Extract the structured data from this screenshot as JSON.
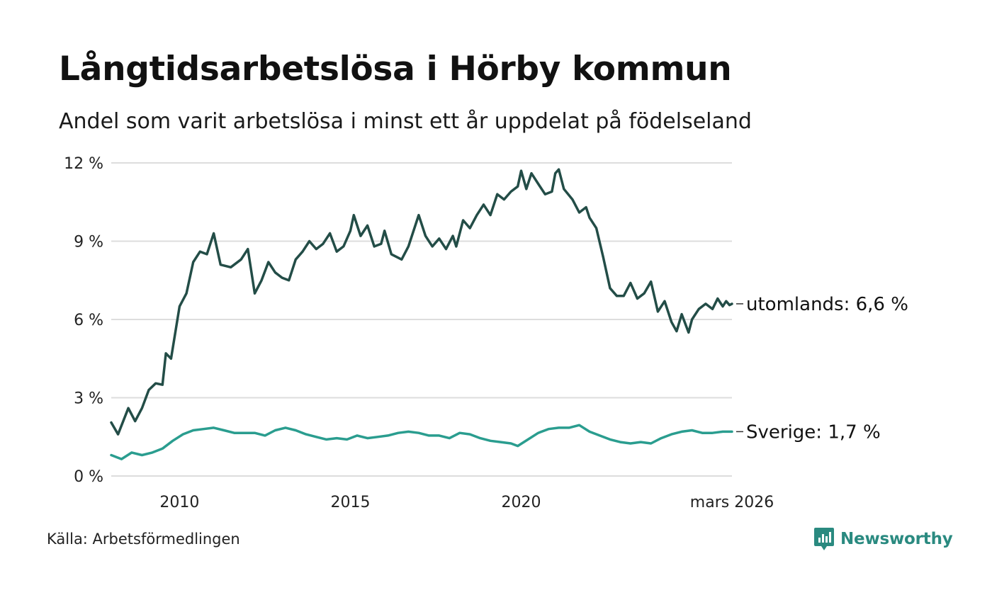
{
  "title": "Långtidsarbetslösa i Hörby kommun",
  "subtitle": "Andel som varit arbetslösa i minst ett år uppdelat på födelseland",
  "source": "Källa: Arbetsförmedlingen",
  "brand": "Newsworthy",
  "colors": {
    "utomlands": "#234d47",
    "sverige": "#2a9d8f",
    "grid": "#dddddd",
    "brand": "#2a8a80"
  },
  "chart_data": {
    "type": "line",
    "title": "Långtidsarbetslösa i Hörby kommun",
    "ylabel": "",
    "ylim": [
      0,
      12
    ],
    "yticks": [
      0,
      3,
      6,
      9,
      12
    ],
    "ytick_labels": [
      "0 %",
      "3 %",
      "6 %",
      "9 %",
      "12 %"
    ],
    "xlim": [
      2008.0,
      2026.17
    ],
    "xticks": [
      2010,
      2015,
      2020,
      2026.17
    ],
    "xtick_labels": [
      "2010",
      "2015",
      "2020",
      "mars 2026"
    ],
    "series": [
      {
        "name": "utomlands",
        "end_label": "utomlands: 6,6 %",
        "points": [
          [
            2008.0,
            2.05
          ],
          [
            2008.2,
            1.6
          ],
          [
            2008.5,
            2.6
          ],
          [
            2008.7,
            2.1
          ],
          [
            2008.9,
            2.6
          ],
          [
            2009.1,
            3.3
          ],
          [
            2009.3,
            3.55
          ],
          [
            2009.5,
            3.5
          ],
          [
            2009.6,
            4.7
          ],
          [
            2009.75,
            4.5
          ],
          [
            2010.0,
            6.5
          ],
          [
            2010.2,
            7.0
          ],
          [
            2010.4,
            8.2
          ],
          [
            2010.6,
            8.6
          ],
          [
            2010.8,
            8.5
          ],
          [
            2011.0,
            9.3
          ],
          [
            2011.2,
            8.1
          ],
          [
            2011.5,
            8.0
          ],
          [
            2011.8,
            8.3
          ],
          [
            2012.0,
            8.7
          ],
          [
            2012.2,
            7.0
          ],
          [
            2012.4,
            7.5
          ],
          [
            2012.6,
            8.2
          ],
          [
            2012.8,
            7.8
          ],
          [
            2013.0,
            7.6
          ],
          [
            2013.2,
            7.5
          ],
          [
            2013.4,
            8.3
          ],
          [
            2013.6,
            8.6
          ],
          [
            2013.8,
            9.0
          ],
          [
            2014.0,
            8.7
          ],
          [
            2014.2,
            8.9
          ],
          [
            2014.4,
            9.3
          ],
          [
            2014.6,
            8.6
          ],
          [
            2014.8,
            8.8
          ],
          [
            2015.0,
            9.4
          ],
          [
            2015.1,
            10.0
          ],
          [
            2015.3,
            9.2
          ],
          [
            2015.5,
            9.6
          ],
          [
            2015.7,
            8.8
          ],
          [
            2015.9,
            8.9
          ],
          [
            2016.0,
            9.4
          ],
          [
            2016.2,
            8.5
          ],
          [
            2016.5,
            8.3
          ],
          [
            2016.7,
            8.8
          ],
          [
            2017.0,
            10.0
          ],
          [
            2017.2,
            9.2
          ],
          [
            2017.4,
            8.8
          ],
          [
            2017.6,
            9.1
          ],
          [
            2017.8,
            8.7
          ],
          [
            2018.0,
            9.2
          ],
          [
            2018.1,
            8.8
          ],
          [
            2018.3,
            9.8
          ],
          [
            2018.5,
            9.5
          ],
          [
            2018.7,
            10.0
          ],
          [
            2018.9,
            10.4
          ],
          [
            2019.1,
            10.0
          ],
          [
            2019.3,
            10.8
          ],
          [
            2019.5,
            10.6
          ],
          [
            2019.7,
            10.9
          ],
          [
            2019.9,
            11.1
          ],
          [
            2020.0,
            11.7
          ],
          [
            2020.15,
            11.0
          ],
          [
            2020.3,
            11.6
          ],
          [
            2020.5,
            11.2
          ],
          [
            2020.7,
            10.8
          ],
          [
            2020.9,
            10.9
          ],
          [
            2021.0,
            11.6
          ],
          [
            2021.1,
            11.75
          ],
          [
            2021.25,
            11.0
          ],
          [
            2021.5,
            10.6
          ],
          [
            2021.7,
            10.1
          ],
          [
            2021.9,
            10.3
          ],
          [
            2022.0,
            9.9
          ],
          [
            2022.2,
            9.5
          ],
          [
            2022.4,
            8.4
          ],
          [
            2022.6,
            7.2
          ],
          [
            2022.8,
            6.9
          ],
          [
            2023.0,
            6.9
          ],
          [
            2023.2,
            7.4
          ],
          [
            2023.4,
            6.8
          ],
          [
            2023.6,
            7.0
          ],
          [
            2023.8,
            7.45
          ],
          [
            2024.0,
            6.3
          ],
          [
            2024.2,
            6.7
          ],
          [
            2024.4,
            5.9
          ],
          [
            2024.55,
            5.55
          ],
          [
            2024.7,
            6.2
          ],
          [
            2024.9,
            5.5
          ],
          [
            2025.0,
            6.0
          ],
          [
            2025.2,
            6.4
          ],
          [
            2025.4,
            6.6
          ],
          [
            2025.6,
            6.4
          ],
          [
            2025.75,
            6.8
          ],
          [
            2025.9,
            6.5
          ],
          [
            2026.0,
            6.7
          ],
          [
            2026.1,
            6.55
          ],
          [
            2026.17,
            6.6
          ]
        ]
      },
      {
        "name": "Sverige",
        "end_label": "Sverige: 1,7 %",
        "points": [
          [
            2008.0,
            0.8
          ],
          [
            2008.3,
            0.65
          ],
          [
            2008.6,
            0.9
          ],
          [
            2008.9,
            0.8
          ],
          [
            2009.2,
            0.9
          ],
          [
            2009.5,
            1.05
          ],
          [
            2009.8,
            1.35
          ],
          [
            2010.1,
            1.6
          ],
          [
            2010.4,
            1.75
          ],
          [
            2010.7,
            1.8
          ],
          [
            2011.0,
            1.85
          ],
          [
            2011.3,
            1.75
          ],
          [
            2011.6,
            1.65
          ],
          [
            2011.9,
            1.65
          ],
          [
            2012.2,
            1.65
          ],
          [
            2012.5,
            1.55
          ],
          [
            2012.8,
            1.75
          ],
          [
            2013.1,
            1.85
          ],
          [
            2013.4,
            1.75
          ],
          [
            2013.7,
            1.6
          ],
          [
            2014.0,
            1.5
          ],
          [
            2014.3,
            1.4
          ],
          [
            2014.6,
            1.45
          ],
          [
            2014.9,
            1.4
          ],
          [
            2015.2,
            1.55
          ],
          [
            2015.5,
            1.45
          ],
          [
            2015.8,
            1.5
          ],
          [
            2016.1,
            1.55
          ],
          [
            2016.4,
            1.65
          ],
          [
            2016.7,
            1.7
          ],
          [
            2017.0,
            1.65
          ],
          [
            2017.3,
            1.55
          ],
          [
            2017.6,
            1.55
          ],
          [
            2017.9,
            1.45
          ],
          [
            2018.2,
            1.65
          ],
          [
            2018.5,
            1.6
          ],
          [
            2018.8,
            1.45
          ],
          [
            2019.1,
            1.35
          ],
          [
            2019.4,
            1.3
          ],
          [
            2019.7,
            1.25
          ],
          [
            2019.9,
            1.15
          ],
          [
            2020.2,
            1.4
          ],
          [
            2020.5,
            1.65
          ],
          [
            2020.8,
            1.8
          ],
          [
            2021.1,
            1.85
          ],
          [
            2021.4,
            1.85
          ],
          [
            2021.7,
            1.95
          ],
          [
            2022.0,
            1.7
          ],
          [
            2022.3,
            1.55
          ],
          [
            2022.6,
            1.4
          ],
          [
            2022.9,
            1.3
          ],
          [
            2023.2,
            1.25
          ],
          [
            2023.5,
            1.3
          ],
          [
            2023.8,
            1.25
          ],
          [
            2024.1,
            1.45
          ],
          [
            2024.4,
            1.6
          ],
          [
            2024.7,
            1.7
          ],
          [
            2025.0,
            1.75
          ],
          [
            2025.3,
            1.65
          ],
          [
            2025.6,
            1.65
          ],
          [
            2025.9,
            1.7
          ],
          [
            2026.17,
            1.7
          ]
        ]
      }
    ]
  }
}
